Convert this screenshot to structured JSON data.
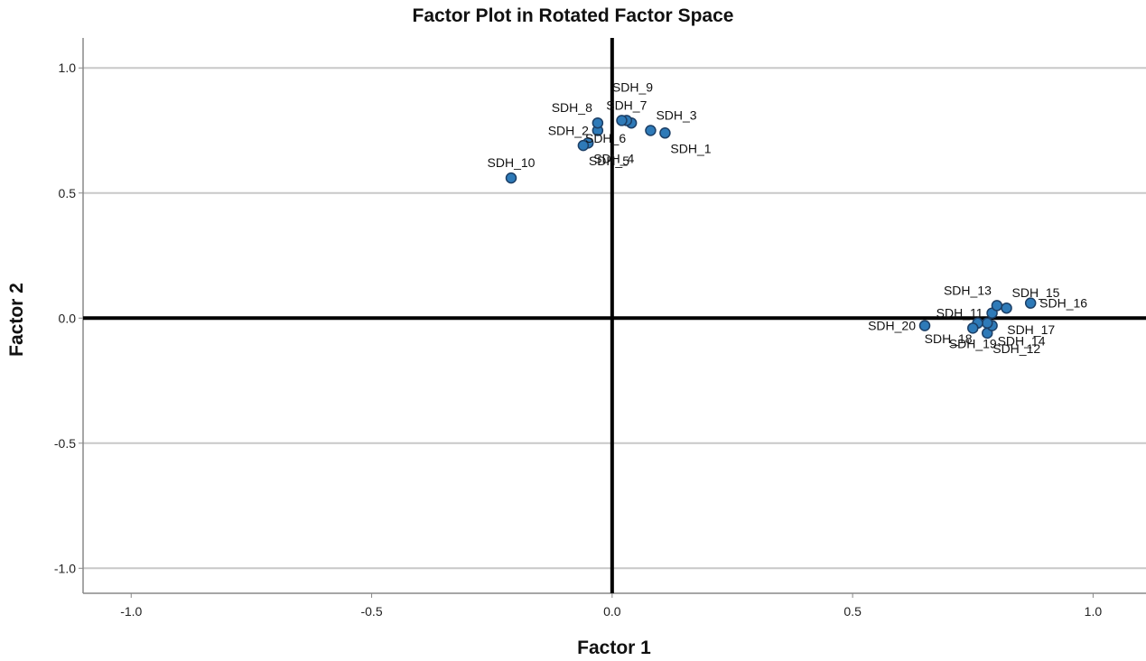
{
  "chart_data": {
    "type": "scatter",
    "title": "Factor Plot in Rotated Factor Space",
    "xlabel": "Factor 1",
    "ylabel": "Factor 2",
    "xlim": [
      -1.1,
      1.11
    ],
    "ylim": [
      -1.1,
      1.12
    ],
    "x_ticks": [
      -1.0,
      -0.5,
      0.0,
      0.5,
      1.0
    ],
    "x_tick_labels": [
      "-1.0",
      "-0.5",
      "0.0",
      "0.5",
      "1.0"
    ],
    "y_ticks": [
      1.0,
      0.5,
      0.0,
      -0.5,
      -1.0
    ],
    "y_tick_labels": [
      "1.0",
      "0.5",
      "0.0",
      "-0.5",
      "-1.0"
    ],
    "grid": "horizontal",
    "reference_lines": [
      0,
      0
    ],
    "marker_color": "#2e7ab8",
    "marker_edge_color": "#1c3f66",
    "points": [
      {
        "label": "SDH_1",
        "x": 0.11,
        "y": 0.74,
        "label_pos": "below-right"
      },
      {
        "label": "SDH_2",
        "x": -0.03,
        "y": 0.75,
        "label_pos": "left"
      },
      {
        "label": "SDH_3",
        "x": 0.08,
        "y": 0.75,
        "label_pos": "above-right"
      },
      {
        "label": "SDH_4",
        "x": -0.05,
        "y": 0.7,
        "label_pos": "below-right"
      },
      {
        "label": "SDH_5",
        "x": -0.06,
        "y": 0.69,
        "label_pos": "below-right"
      },
      {
        "label": "SDH_6",
        "x": 0.04,
        "y": 0.78,
        "label_pos": "below-left"
      },
      {
        "label": "SDH_7",
        "x": 0.03,
        "y": 0.79,
        "label_pos": "above"
      },
      {
        "label": "SDH_8",
        "x": -0.03,
        "y": 0.78,
        "label_pos": "above-left"
      },
      {
        "label": "SDH_9",
        "x": 0.02,
        "y": 0.79,
        "label_pos": "above-high"
      },
      {
        "label": "SDH_10",
        "x": -0.21,
        "y": 0.56,
        "label_pos": "above"
      },
      {
        "label": "SDH_11",
        "x": 0.79,
        "y": 0.02,
        "label_pos": "left"
      },
      {
        "label": "SDH_12",
        "x": 0.78,
        "y": -0.06,
        "label_pos": "below-right"
      },
      {
        "label": "SDH_13",
        "x": 0.8,
        "y": 0.05,
        "label_pos": "above-left"
      },
      {
        "label": "SDH_14",
        "x": 0.79,
        "y": -0.03,
        "label_pos": "below-right"
      },
      {
        "label": "SDH_15",
        "x": 0.82,
        "y": 0.04,
        "label_pos": "above-right"
      },
      {
        "label": "SDH_16",
        "x": 0.87,
        "y": 0.06,
        "label_pos": "right"
      },
      {
        "label": "SDH_17",
        "x": 0.78,
        "y": -0.02,
        "label_pos": "right-far"
      },
      {
        "label": "SDH_18",
        "x": 0.76,
        "y": -0.02,
        "label_pos": "below-left"
      },
      {
        "label": "SDH_19",
        "x": 0.75,
        "y": -0.04,
        "label_pos": "below"
      },
      {
        "label": "SDH_20",
        "x": 0.65,
        "y": -0.03,
        "label_pos": "left"
      }
    ]
  }
}
